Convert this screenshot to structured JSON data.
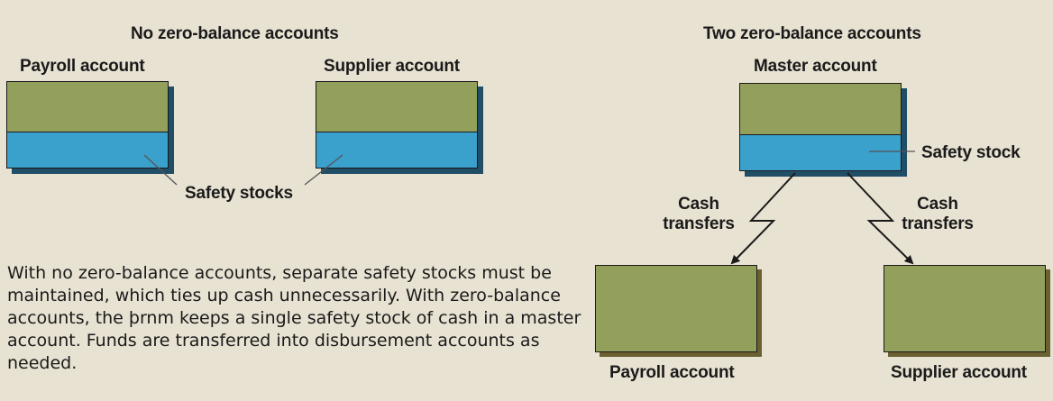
{
  "left_panel": {
    "heading": "No zero-balance accounts",
    "payroll_label": "Payroll account",
    "supplier_label": "Supplier account",
    "safety_label": "Safety stocks"
  },
  "right_panel": {
    "heading": "Two zero-balance accounts",
    "master_label": "Master account",
    "safety_label": "Safety stock",
    "transfer_left_line1": "Cash",
    "transfer_left_line2": "transfers",
    "transfer_right_line1": "Cash",
    "transfer_right_line2": "transfers",
    "payroll_label": "Payroll account",
    "supplier_label": "Supplier account"
  },
  "caption": "With no zero-balance accounts, separate safety stocks must be maintained, which ties up cash unnecessarily. With zero-balance accounts, the þrnm keeps a single safety stock of cash in a master account. Funds are transferred into disbursement accounts as needed.",
  "colors": {
    "background": "#e8e2d2",
    "account_green": "#93a05c",
    "safety_blue": "#3aa0cc",
    "shadow_dark_blue": "#1f4e66",
    "shadow_olive": "#6b6032"
  }
}
